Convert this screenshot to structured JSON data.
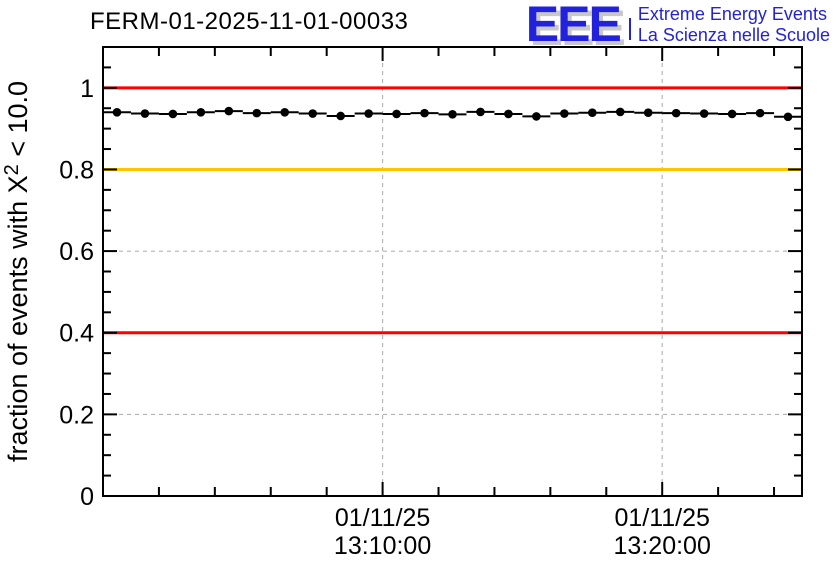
{
  "title": "FERM-01-2025-11-01-00033",
  "logo": {
    "acronym": "EEE",
    "line1": "Extreme Energy Events",
    "line2": "La Scienza nelle Scuole",
    "color": "#2222dd",
    "shadow_color": "#c8c8c8"
  },
  "chart_data": {
    "type": "line",
    "title": "FERM-01-2025-11-01-00033",
    "ylabel": "fraction of events with X² < 10.0",
    "ylabel_parts": {
      "base": "fraction of events with X",
      "sup": "2",
      "rest": " < 10.0"
    },
    "xlabel": "",
    "ylim": [
      0,
      1.1
    ],
    "xlim_minutes": [
      0,
      25
    ],
    "grid": "dashed",
    "grid_color": "#a8a8a8",
    "legend": "none",
    "y_major_ticks": [
      {
        "v": 0,
        "label": "0"
      },
      {
        "v": 0.2,
        "label": "0.2"
      },
      {
        "v": 0.4,
        "label": "0.4"
      },
      {
        "v": 0.6,
        "label": "0.6"
      },
      {
        "v": 0.8,
        "label": "0.8"
      },
      {
        "v": 1,
        "label": "1"
      }
    ],
    "y_minor_step": 0.05,
    "x_major_ticks": [
      {
        "minute": 10,
        "date": "01/11/25",
        "time": "13:10:00"
      },
      {
        "minute": 20,
        "date": "01/11/25",
        "time": "13:20:00"
      }
    ],
    "x_minor_step_minutes": 2,
    "reference_lines": [
      {
        "y": 1.0,
        "color": "#ff0000"
      },
      {
        "y": 0.8,
        "color": "#ffc400"
      },
      {
        "y": 0.4,
        "color": "#ff0000"
      }
    ],
    "series": [
      {
        "name": "fraction of events with X2 < 10.0",
        "marker": "filled-circle",
        "color": "#000000",
        "x_error_minutes": 0.5,
        "x_minutes": [
          0.5,
          1.5,
          2.5,
          3.5,
          4.5,
          5.5,
          6.5,
          7.5,
          8.5,
          9.5,
          10.5,
          11.5,
          12.5,
          13.5,
          14.5,
          15.5,
          16.5,
          17.5,
          18.5,
          19.5,
          20.5,
          21.5,
          22.5,
          23.5,
          24.5
        ],
        "values": [
          0.94,
          0.937,
          0.936,
          0.94,
          0.943,
          0.938,
          0.94,
          0.937,
          0.931,
          0.937,
          0.936,
          0.938,
          0.935,
          0.941,
          0.936,
          0.93,
          0.937,
          0.939,
          0.941,
          0.939,
          0.938,
          0.937,
          0.936,
          0.938,
          0.929
        ]
      }
    ]
  }
}
